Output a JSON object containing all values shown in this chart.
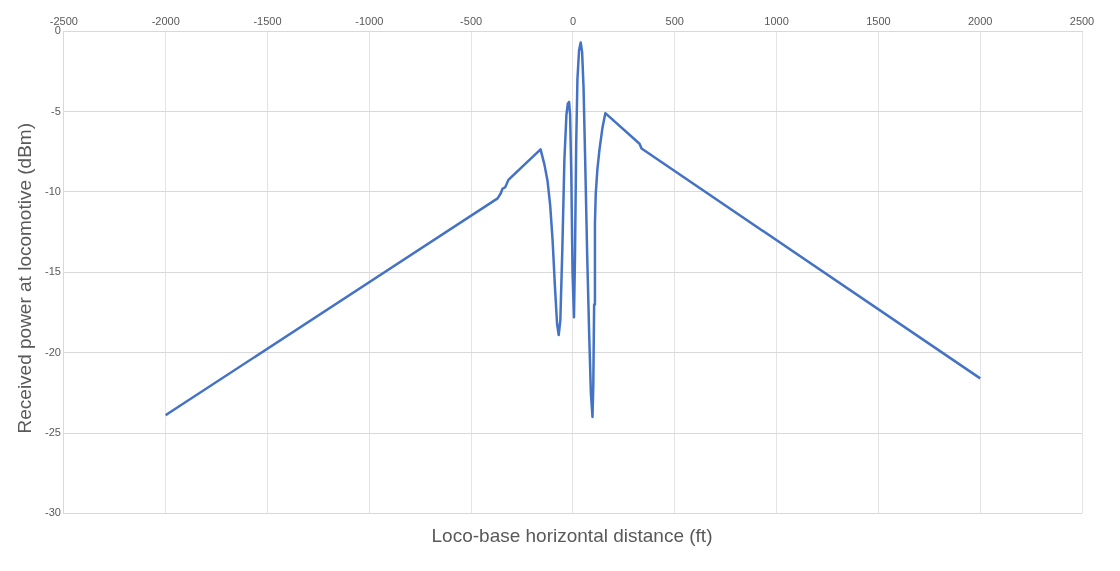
{
  "chart_data": {
    "type": "line",
    "xlabel": "Loco-base horizontal distance (ft)",
    "ylabel": "Received power at locomotive (dBm)",
    "series": [
      {
        "color": "#4472c4",
        "x": [
          -2000,
          -1990,
          -370,
          -355,
          -346,
          -332,
          -317,
          -159,
          -140,
          -125,
          -112,
          -100,
          -88,
          -78,
          -70,
          -62,
          -52,
          -42,
          -32,
          -25,
          -19,
          -14,
          -8,
          -2,
          5,
          10,
          16,
          22,
          30,
          38,
          45,
          52,
          60,
          70,
          80,
          88,
          96,
          100,
          104,
          108,
          112,
          120,
          130,
          145,
          159,
          327,
          337,
          2000
        ],
        "values": [
          -23.9,
          -23.8,
          -10.4,
          -10.1,
          -9.8,
          -9.7,
          -9.25,
          -7.35,
          -8.3,
          -9.3,
          -10.8,
          -13,
          -16,
          -18.2,
          -18.9,
          -18,
          -13.5,
          -8,
          -5.2,
          -4.5,
          -4.4,
          -5.2,
          -9,
          -15,
          -17.8,
          -14,
          -7,
          -3,
          -1.2,
          -0.7,
          -1.3,
          -3.5,
          -8,
          -14,
          -19,
          -22.5,
          -24.0,
          -22,
          -17,
          -12,
          -10.1,
          -8.6,
          -7.4,
          -6,
          -5.1,
          -7.0,
          -7.3,
          -21.6
        ]
      }
    ],
    "xlim": [
      -2500,
      2500
    ],
    "xticks": [
      -2500,
      -2000,
      -1500,
      -1000,
      -500,
      0,
      500,
      1000,
      1500,
      2000,
      2500
    ],
    "ylim": [
      -30,
      0
    ],
    "yticks": [
      -30,
      -25,
      -20,
      -15,
      -10,
      -5,
      0
    ],
    "grid": true
  }
}
